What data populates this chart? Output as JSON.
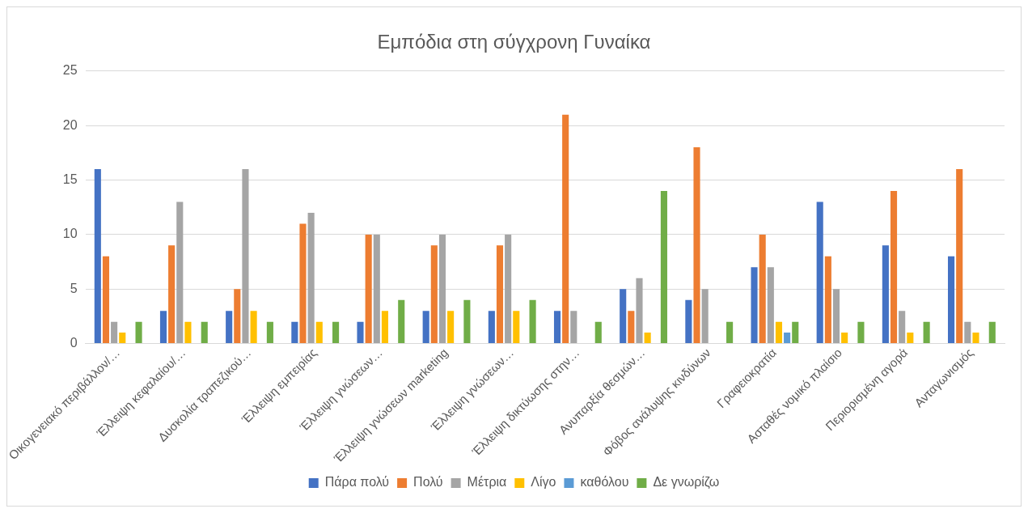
{
  "chart_data": {
    "type": "bar",
    "title": "Εμπόδια στη σύγχρονη Γυναίκα",
    "categories": [
      "Οικογενειακό περιβάλλον/…",
      "Έλλειψη κεφαλαίου/…",
      "Δυσκολία τραπεζικού…",
      "Έλλειψη εμπειρίας",
      "Έλλειψη γνώσεων…",
      "Έλλειψη γνώσεων marketing",
      "Έλλειψη γνώσεων…",
      "Έλλειψη δικτύωσης στην…",
      "Ανυπαρξία θεσμών…",
      "Φόβος ανάλυψης κινδύνων",
      "Γραφειοκρατία",
      "Ασταθές νομικό πλαίσιο",
      "Περιορισμένη αγορά",
      "Ανταγωνισμός"
    ],
    "series": [
      {
        "name": "Πάρα πολύ",
        "color": "#4472c4",
        "values": [
          16,
          3,
          3,
          2,
          2,
          3,
          3,
          3,
          5,
          4,
          7,
          13,
          9,
          8
        ]
      },
      {
        "name": "Πολύ",
        "color": "#ed7d31",
        "values": [
          8,
          9,
          5,
          11,
          10,
          9,
          9,
          21,
          3,
          18,
          10,
          8,
          14,
          16
        ]
      },
      {
        "name": "Μέτρια",
        "color": "#a5a5a5",
        "values": [
          2,
          13,
          16,
          12,
          10,
          10,
          10,
          3,
          6,
          5,
          7,
          5,
          3,
          2
        ]
      },
      {
        "name": "Λίγο",
        "color": "#ffc000",
        "values": [
          1,
          2,
          3,
          2,
          3,
          3,
          3,
          0,
          1,
          0,
          2,
          1,
          1,
          1
        ]
      },
      {
        "name": "καθόλου",
        "color": "#5b9bd5",
        "values": [
          0,
          0,
          0,
          0,
          0,
          0,
          0,
          0,
          0,
          0,
          1,
          0,
          0,
          0
        ]
      },
      {
        "name": "Δε γνωρίζω",
        "color": "#70ad47",
        "values": [
          2,
          2,
          2,
          2,
          4,
          4,
          4,
          2,
          14,
          2,
          2,
          2,
          2,
          2
        ]
      }
    ],
    "ylim": [
      0,
      25
    ],
    "yticks": [
      0,
      5,
      10,
      15,
      20,
      25
    ],
    "grid": "y",
    "legend": "bottom"
  }
}
